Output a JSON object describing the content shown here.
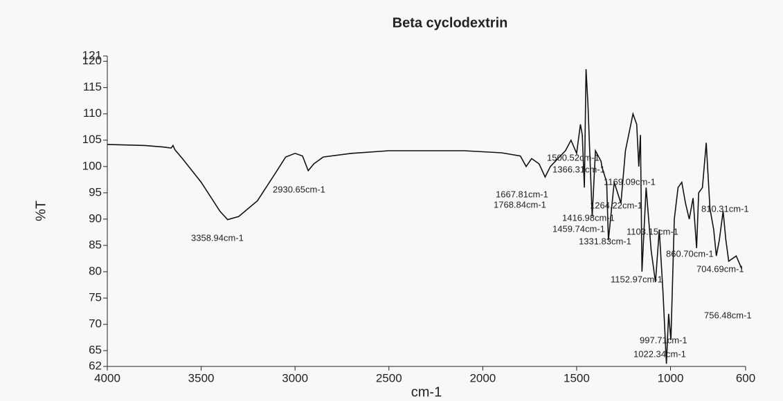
{
  "chart_data": {
    "type": "line",
    "title": "Beta cyclodextrin",
    "x_label": "cm-1",
    "y_label": "%T",
    "xlim": [
      4000,
      600
    ],
    "ylim": [
      62,
      121
    ],
    "xticks": [
      4000,
      3500,
      3000,
      2500,
      2000,
      1500,
      1000,
      600
    ],
    "yticks": [
      62,
      65,
      70,
      75,
      80,
      85,
      90,
      95,
      100,
      105,
      110,
      115,
      120,
      121
    ],
    "series": [
      {
        "name": "Beta cyclodextrin",
        "color": "#111111",
        "x": [
          4000,
          3800,
          3700,
          3660,
          3650,
          3640,
          3600,
          3500,
          3400,
          3359,
          3300,
          3200,
          3100,
          3050,
          3000,
          2960,
          2930,
          2900,
          2850,
          2700,
          2500,
          2300,
          2100,
          1900,
          1800,
          1769,
          1740,
          1700,
          1668,
          1640,
          1600,
          1560,
          1530,
          1500,
          1480,
          1470,
          1459,
          1450,
          1440,
          1417,
          1400,
          1370,
          1366,
          1340,
          1331,
          1300,
          1264,
          1240,
          1200,
          1180,
          1169,
          1160,
          1152,
          1130,
          1103,
          1080,
          1060,
          1040,
          1022,
          1010,
          998,
          980,
          960,
          940,
          920,
          900,
          880,
          861,
          850,
          830,
          810,
          790,
          770,
          756,
          740,
          720,
          705,
          690,
          650,
          620
        ],
        "values": [
          104.2,
          104.0,
          103.7,
          103.5,
          104.0,
          103.2,
          101.5,
          97,
          91.5,
          89.9,
          90.5,
          93.5,
          99,
          101.8,
          102.5,
          102,
          99.2,
          100.5,
          101.8,
          102.5,
          103,
          103,
          103,
          102.6,
          102,
          100,
          101.5,
          100.5,
          98,
          100,
          101.5,
          103,
          105,
          102.5,
          108,
          106,
          96,
          118.5,
          112,
          90.5,
          103,
          101,
          100,
          97,
          86,
          97,
          93,
          103,
          110,
          108,
          100,
          106,
          80,
          96,
          84,
          78,
          88,
          76,
          62.5,
          72,
          67,
          90,
          96,
          97,
          93,
          90,
          94,
          84.5,
          95,
          96,
          104.5,
          92,
          88,
          83,
          86,
          91.5,
          86,
          82,
          83,
          80.5
        ]
      }
    ],
    "annotations": [
      "3358.94cm-1",
      "2930.65cm-1",
      "1768.84cm-1",
      "1667.81cm-1",
      "1500.52cm-1",
      "1366.31cm-1",
      "1169.09cm-1",
      "1264.22cm-1",
      "1416.98cm-1",
      "1459.74cm-1",
      "1331.83cm-1",
      "1103.15cm-1",
      "810.31cm-1",
      "860.70cm-1",
      "704.69cm-1",
      "1152.97cm-1",
      "756.48cm-1",
      "997.71cm-1",
      "1022.34cm-1"
    ]
  }
}
